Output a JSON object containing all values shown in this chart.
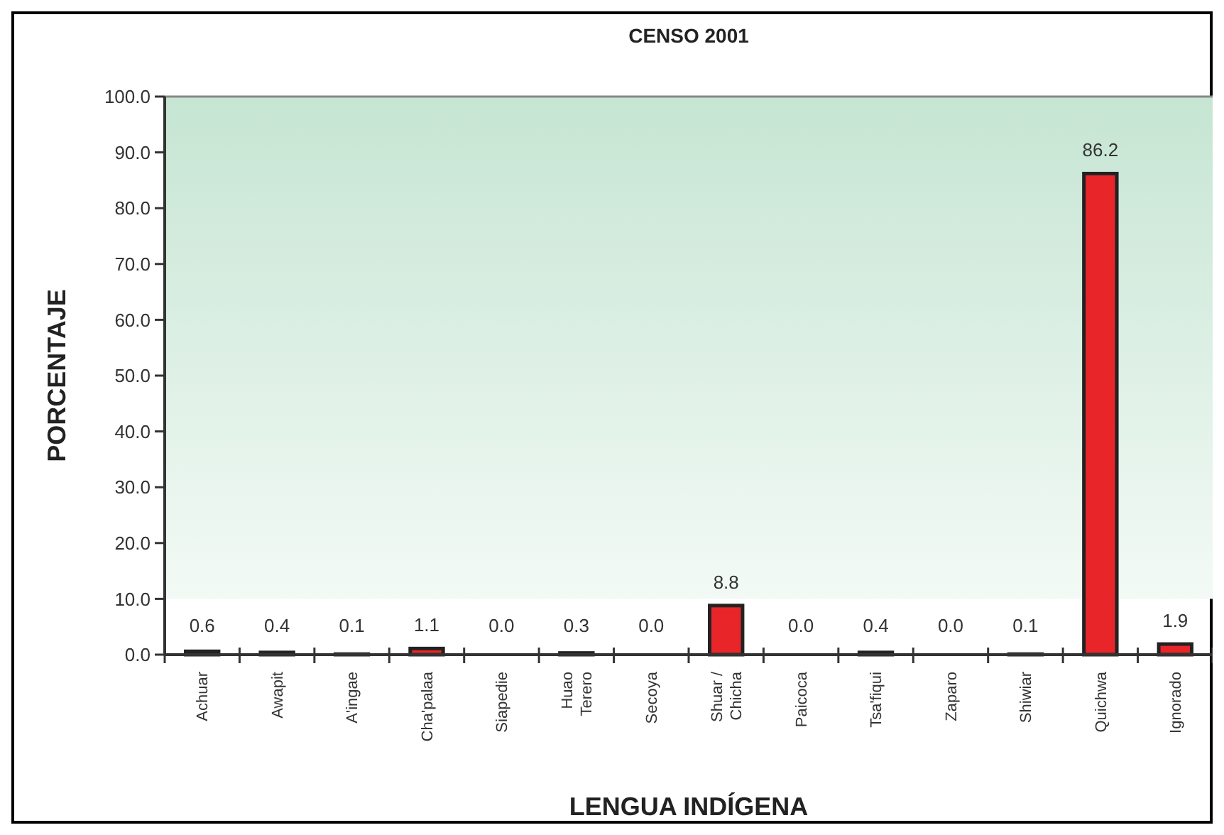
{
  "chart_data": {
    "type": "bar",
    "title": "CENSO 2001",
    "xlabel": "LENGUA INDÍGENA",
    "ylabel": "PORCENTAJE",
    "categories": [
      "Achuar",
      "Awapit",
      "A'ingae",
      "Cha'palaa",
      "Siapedie",
      "Huao\nTerero",
      "Secoya",
      "Shuar /\nChicha",
      "Paicoca",
      "Tsa'fiqui",
      "Zaparo",
      "Shiwiar",
      "Quichwa",
      "Ignorado"
    ],
    "values": [
      0.6,
      0.4,
      0.1,
      1.1,
      0,
      0.3,
      0,
      8.8,
      0,
      0.4,
      0,
      0.1,
      86.2,
      1.9
    ],
    "value_labels": [
      "0.6",
      "0.4",
      "0.1",
      "1.1",
      "0.0",
      "0.3",
      "0.0",
      "8.8",
      "0.0",
      "0.4",
      "0.0",
      "0.1",
      "86.2",
      "1.9"
    ],
    "color": "#e8262a",
    "ylim": [
      0,
      100
    ],
    "yticks": [
      {
        "value": 0,
        "label": "0.0"
      },
      {
        "value": 10,
        "label": "10.0"
      },
      {
        "value": 20,
        "label": "20.0"
      },
      {
        "value": 30,
        "label": "30.0"
      },
      {
        "value": 40,
        "label": "40.0"
      },
      {
        "value": 50,
        "label": "50.0"
      },
      {
        "value": 60,
        "label": "60.0"
      },
      {
        "value": 70,
        "label": "70.0"
      },
      {
        "value": 80,
        "label": "80.0"
      },
      {
        "value": 90,
        "label": "90.0"
      },
      {
        "value": 100,
        "label": "100.0"
      }
    ],
    "grid": false
  }
}
